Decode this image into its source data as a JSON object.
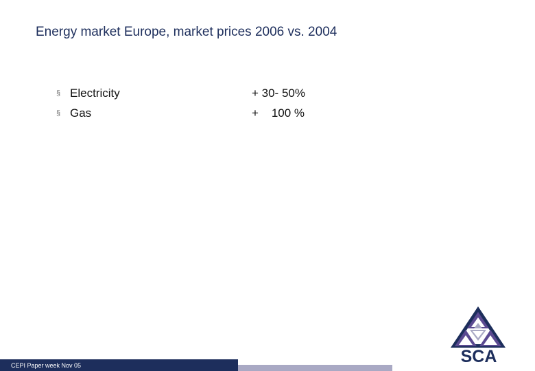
{
  "slide": {
    "title": "Energy market Europe, market prices 2006 vs. 2004",
    "rows": [
      {
        "bullet": "§",
        "label": "Electricity",
        "value": "+ 30- 50%"
      },
      {
        "bullet": "§",
        "label": "Gas",
        "value": "+    100 %"
      }
    ],
    "footer": "CEPI Paper week Nov 05",
    "logo_text": "SCA"
  },
  "colors": {
    "navy": "#1d2e5c",
    "lavender": "#a9a9c4",
    "purple": "#5b4a91"
  }
}
